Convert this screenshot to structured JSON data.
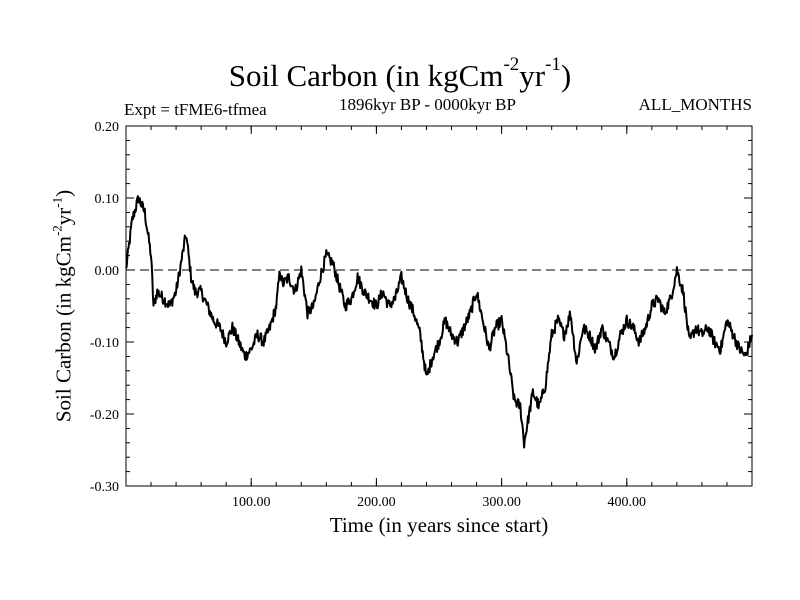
{
  "chart_data": {
    "type": "line",
    "title": {
      "prefix": "Soil Carbon (in kgCm",
      "exp1": "-2",
      "mid": "yr",
      "exp2": "-1",
      "suffix": ")"
    },
    "expt_label": "Expt = tFME6-tfmea",
    "period_label": "1896kyr BP - 0000kyr BP",
    "months_label": "ALL_MONTHS",
    "xlabel": "Time (in years since start)",
    "ylabel": {
      "prefix": "Soil Carbon (in kgCm",
      "exp1": "-2",
      "mid": "yr",
      "exp2": "-1",
      "suffix": ")"
    },
    "xlim": [
      0,
      500
    ],
    "ylim": [
      -0.3,
      0.2
    ],
    "xticks": [
      100,
      200,
      300,
      400
    ],
    "xtick_labels": [
      "100.00",
      "200.00",
      "300.00",
      "400.00"
    ],
    "yticks": [
      -0.3,
      -0.2,
      -0.1,
      0.0,
      0.1,
      0.2
    ],
    "ytick_labels": [
      "-0.30",
      "-0.20",
      "-0.10",
      "0.00",
      "0.10",
      "0.20"
    ],
    "reference_line": {
      "y": 0.0,
      "style": "dashed"
    },
    "series": [
      {
        "name": "Soil Carbon",
        "color": "#000000",
        "x": [
          0,
          5,
          10,
          15,
          20,
          22,
          25,
          30,
          35,
          40,
          45,
          48,
          52,
          55,
          60,
          65,
          70,
          75,
          80,
          85,
          90,
          95,
          100,
          105,
          110,
          115,
          120,
          123,
          125,
          130,
          135,
          140,
          145,
          150,
          155,
          160,
          165,
          170,
          175,
          180,
          185,
          190,
          195,
          200,
          205,
          210,
          215,
          220,
          225,
          230,
          235,
          240,
          245,
          250,
          255,
          260,
          265,
          270,
          275,
          280,
          285,
          290,
          295,
          300,
          305,
          310,
          315,
          318,
          320,
          325,
          330,
          335,
          340,
          345,
          350,
          355,
          360,
          365,
          370,
          375,
          380,
          385,
          390,
          395,
          400,
          405,
          410,
          415,
          420,
          425,
          430,
          435,
          440,
          445,
          450,
          455,
          460,
          465,
          470,
          475,
          480,
          485,
          490,
          495,
          500
        ],
        "y": [
          0.0,
          0.07,
          0.1,
          0.08,
          0.02,
          -0.05,
          -0.03,
          -0.04,
          -0.05,
          -0.03,
          0.02,
          0.05,
          -0.01,
          -0.03,
          -0.03,
          -0.05,
          -0.07,
          -0.08,
          -0.1,
          -0.08,
          -0.1,
          -0.12,
          -0.11,
          -0.09,
          -0.1,
          -0.08,
          -0.05,
          0.0,
          -0.02,
          -0.01,
          -0.03,
          0.0,
          -0.06,
          -0.05,
          -0.01,
          0.02,
          0.01,
          -0.02,
          -0.05,
          -0.04,
          -0.01,
          -0.03,
          -0.04,
          -0.05,
          -0.03,
          -0.05,
          -0.04,
          -0.01,
          -0.04,
          -0.06,
          -0.09,
          -0.15,
          -0.12,
          -0.1,
          -0.07,
          -0.09,
          -0.1,
          -0.08,
          -0.06,
          -0.03,
          -0.07,
          -0.11,
          -0.08,
          -0.07,
          -0.12,
          -0.18,
          -0.19,
          -0.24,
          -0.22,
          -0.17,
          -0.19,
          -0.16,
          -0.09,
          -0.07,
          -0.09,
          -0.06,
          -0.13,
          -0.08,
          -0.09,
          -0.11,
          -0.08,
          -0.1,
          -0.12,
          -0.09,
          -0.07,
          -0.08,
          -0.1,
          -0.08,
          -0.05,
          -0.04,
          -0.06,
          -0.04,
          0.0,
          -0.03,
          -0.1,
          -0.08,
          -0.09,
          -0.08,
          -0.1,
          -0.11,
          -0.07,
          -0.09,
          -0.11,
          -0.12,
          -0.09
        ]
      }
    ]
  }
}
